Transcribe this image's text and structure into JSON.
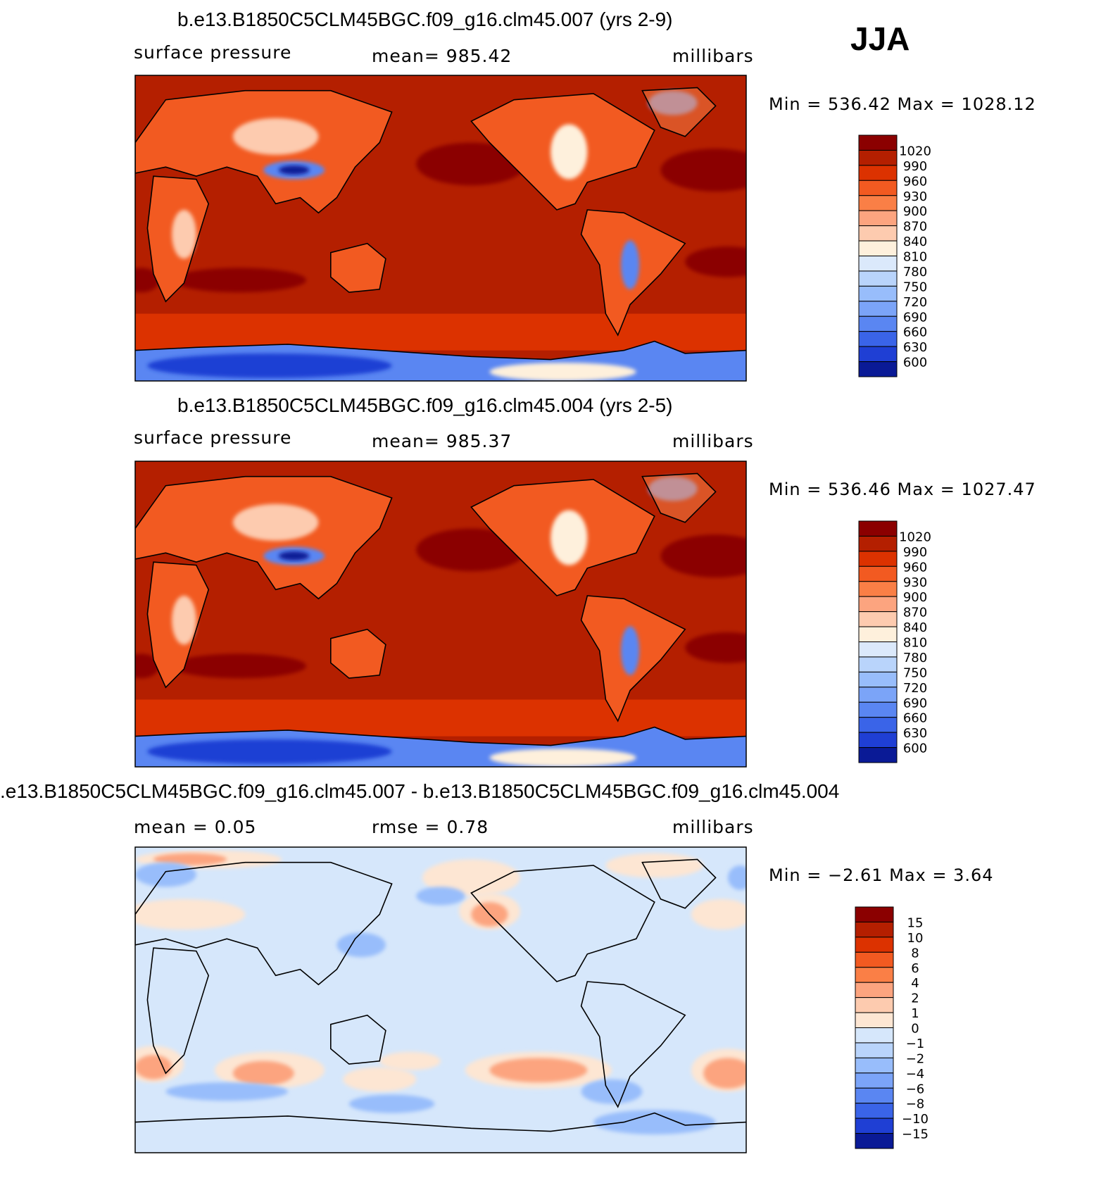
{
  "season": "JJA",
  "panels": [
    {
      "title": "b.e13.B1850C5CLM45BGC.f09_g16.clm45.007 (yrs 2-9)",
      "left": "surface pressure",
      "center": "mean= 985.42",
      "right": "millibars",
      "minmax": "Min = 536.42 Max = 1028.12"
    },
    {
      "title": "b.e13.B1850C5CLM45BGC.f09_g16.clm45.004 (yrs 2-5)",
      "left": "surface pressure",
      "center": "mean= 985.37",
      "right": "millibars",
      "minmax": "Min = 536.46 Max = 1027.47"
    },
    {
      "title": ".e13.B1850C5CLM45BGC.f09_g16.clm45.007 - b.e13.B1850C5CLM45BGC.f09_g16.clm45.004",
      "left": "mean = 0.05",
      "center": "rmse = 0.78",
      "right": "millibars",
      "minmax": "Min = −2.61 Max = 3.64"
    }
  ],
  "chart_data": [
    {
      "type": "heatmap",
      "title": "b.e13.B1850C5CLM45BGC.f09_g16.clm45.007 (yrs 2-9)",
      "variable": "surface pressure",
      "units": "millibars",
      "mean": 985.42,
      "min": 536.42,
      "max": 1028.12,
      "colorbar_levels": [
        "1020",
        "990",
        "960",
        "930",
        "900",
        "870",
        "840",
        "810",
        "780",
        "750",
        "720",
        "690",
        "660",
        "630",
        "600"
      ],
      "colorbar_colors": [
        "#8b0000",
        "#b41f00",
        "#dc3200",
        "#f25a21",
        "#fa7f46",
        "#fca47f",
        "#fdcbaf",
        "#fef0dc",
        "#dbe9fb",
        "#b9d4fb",
        "#98bdfb",
        "#7ba4f8",
        "#5a86f2",
        "#3a64e8",
        "#1f3fd4",
        "#0a1a96"
      ],
      "grid": false,
      "legend": "right"
    },
    {
      "type": "heatmap",
      "title": "b.e13.B1850C5CLM45BGC.f09_g16.clm45.004 (yrs 2-5)",
      "variable": "surface pressure",
      "units": "millibars",
      "mean": 985.37,
      "min": 536.46,
      "max": 1027.47,
      "colorbar_levels": [
        "1020",
        "990",
        "960",
        "930",
        "900",
        "870",
        "840",
        "810",
        "780",
        "750",
        "720",
        "690",
        "660",
        "630",
        "600"
      ],
      "colorbar_colors": [
        "#8b0000",
        "#b41f00",
        "#dc3200",
        "#f25a21",
        "#fa7f46",
        "#fca47f",
        "#fdcbaf",
        "#fef0dc",
        "#dbe9fb",
        "#b9d4fb",
        "#98bdfb",
        "#7ba4f8",
        "#5a86f2",
        "#3a64e8",
        "#1f3fd4",
        "#0a1a96"
      ],
      "grid": false,
      "legend": "right"
    },
    {
      "type": "heatmap",
      "title": ".e13.B1850C5CLM45BGC.f09_g16.clm45.007 - b.e13.B1850C5CLM45BGC.f09_g16.clm45.004",
      "units": "millibars",
      "mean": 0.05,
      "rmse": 0.78,
      "min": -2.61,
      "max": 3.64,
      "colorbar_levels": [
        "15",
        "10",
        "8",
        "6",
        "4",
        "2",
        "1",
        "0",
        "−1",
        "−2",
        "−4",
        "−6",
        "−8",
        "−10",
        "−15"
      ],
      "colorbar_colors": [
        "#8b0000",
        "#b41f00",
        "#dc3200",
        "#f25a21",
        "#fa7f46",
        "#fca47f",
        "#fdcbaf",
        "#fde6d3",
        "#d6e7fb",
        "#b9d4fb",
        "#98bdfb",
        "#7ba4f8",
        "#5a86f2",
        "#3a64e8",
        "#1f3fd4",
        "#0a1a96"
      ],
      "grid": false,
      "legend": "right"
    }
  ]
}
